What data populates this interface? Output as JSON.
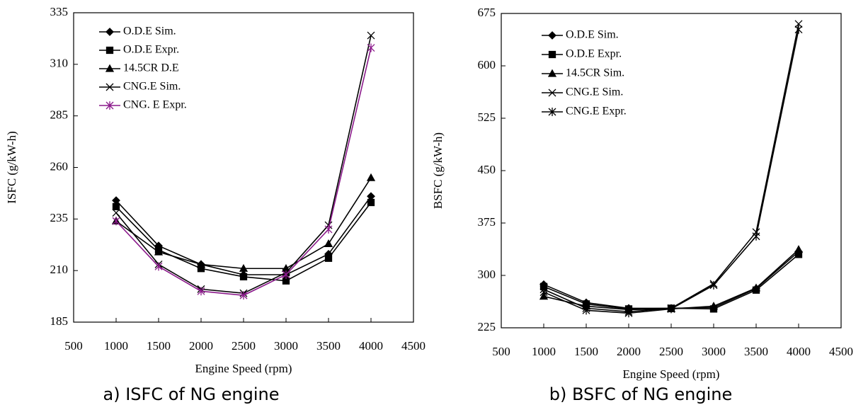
{
  "chart_data": [
    {
      "type": "line",
      "caption": "a) ISFC of NG engine",
      "xlabel": "Engine Speed (rpm)",
      "ylabel": "ISFC (g/kW-h)",
      "x": [
        1000,
        1500,
        2000,
        2500,
        3000,
        3500,
        4000
      ],
      "xlim": [
        500,
        4500
      ],
      "xticks": [
        500,
        1000,
        1500,
        2000,
        2500,
        3000,
        3500,
        4000,
        4500
      ],
      "ylim": [
        185,
        335
      ],
      "yticks": [
        185,
        210,
        235,
        260,
        285,
        310,
        335
      ],
      "series": [
        {
          "name": "O.D.E Sim.",
          "color": "#000000",
          "marker": "diamond",
          "values": [
            244,
            222,
            213,
            208,
            208,
            218,
            246
          ]
        },
        {
          "name": "O.D.E Expr.",
          "color": "#000000",
          "marker": "square",
          "values": [
            241,
            220,
            211,
            207,
            205,
            216,
            243
          ]
        },
        {
          "name": "14.5CR D.E",
          "color": "#000000",
          "marker": "triangle",
          "values": [
            234,
            219,
            213,
            211,
            211,
            223,
            255
          ]
        },
        {
          "name": "CNG.E Sim.",
          "color": "#000000",
          "marker": "x",
          "values": [
            238,
            213,
            201,
            199,
            209,
            232,
            324
          ]
        },
        {
          "name": "CNG. E Expr.",
          "color": "#8b1a8b",
          "marker": "asterisk",
          "values": [
            234,
            212,
            200,
            198,
            208,
            230,
            318
          ]
        }
      ]
    },
    {
      "type": "line",
      "caption": "b) BSFC of NG engine",
      "xlabel": "Engine Speed (rpm)",
      "ylabel": "BSFC (g/kW-h)",
      "x": [
        1000,
        1500,
        2000,
        2500,
        3000,
        3500,
        4000
      ],
      "xlim": [
        500,
        4500
      ],
      "xticks": [
        500,
        1000,
        1500,
        2000,
        2500,
        3000,
        3500,
        4000,
        4500
      ],
      "ylim": [
        225,
        675
      ],
      "yticks": [
        225,
        300,
        375,
        450,
        525,
        600,
        675
      ],
      "series": [
        {
          "name": "O.D.E Sim.",
          "color": "#000000",
          "marker": "diamond",
          "values": [
            287,
            261,
            253,
            253,
            254,
            281,
            334
          ]
        },
        {
          "name": "O.D.E Expr.",
          "color": "#000000",
          "marker": "square",
          "values": [
            284,
            259,
            252,
            253,
            252,
            279,
            330
          ]
        },
        {
          "name": "14.5CR Sim.",
          "color": "#000000",
          "marker": "triangle",
          "values": [
            270,
            256,
            251,
            252,
            256,
            282,
            337
          ]
        },
        {
          "name": "CNG.E Sim.",
          "color": "#000000",
          "marker": "x",
          "values": [
            280,
            253,
            248,
            253,
            288,
            362,
            660
          ]
        },
        {
          "name": "CNG.E Expr.",
          "color": "#000000",
          "marker": "asterisk",
          "values": [
            276,
            250,
            246,
            252,
            286,
            356,
            652
          ]
        }
      ]
    }
  ]
}
